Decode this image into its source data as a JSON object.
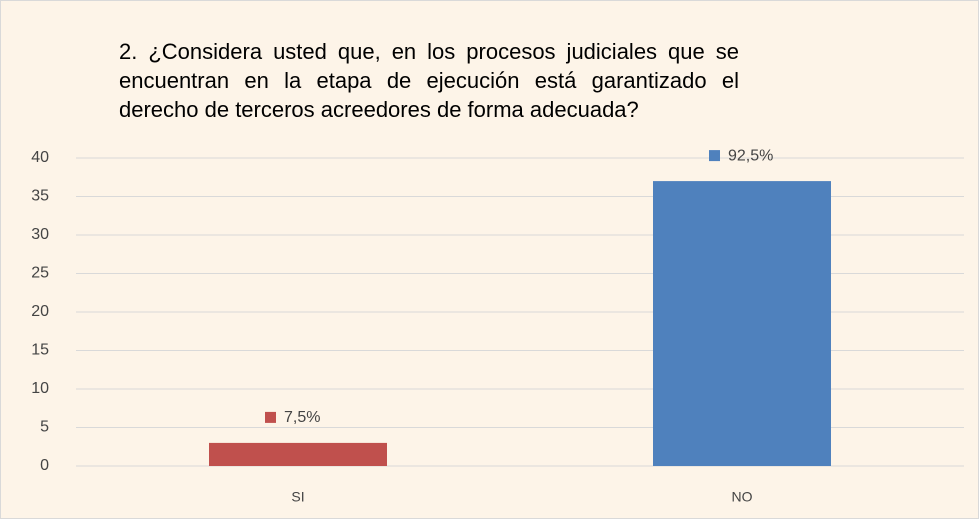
{
  "chart_data": {
    "type": "bar",
    "title": "2. ¿Considera usted que, en los procesos judiciales que se encuentran en la etapa de ejecución está garantizado el derecho de terceros acreedores de forma adecuada?",
    "categories": [
      "SI",
      "NO"
    ],
    "values": [
      3,
      37
    ],
    "value_labels": [
      "7,5%",
      "92,5%"
    ],
    "colors": [
      "#c0504d",
      "#4f81bd"
    ],
    "ylim": [
      0,
      40
    ],
    "yticks": [
      0,
      5,
      10,
      15,
      20,
      25,
      30,
      35,
      40
    ],
    "grid": true
  }
}
